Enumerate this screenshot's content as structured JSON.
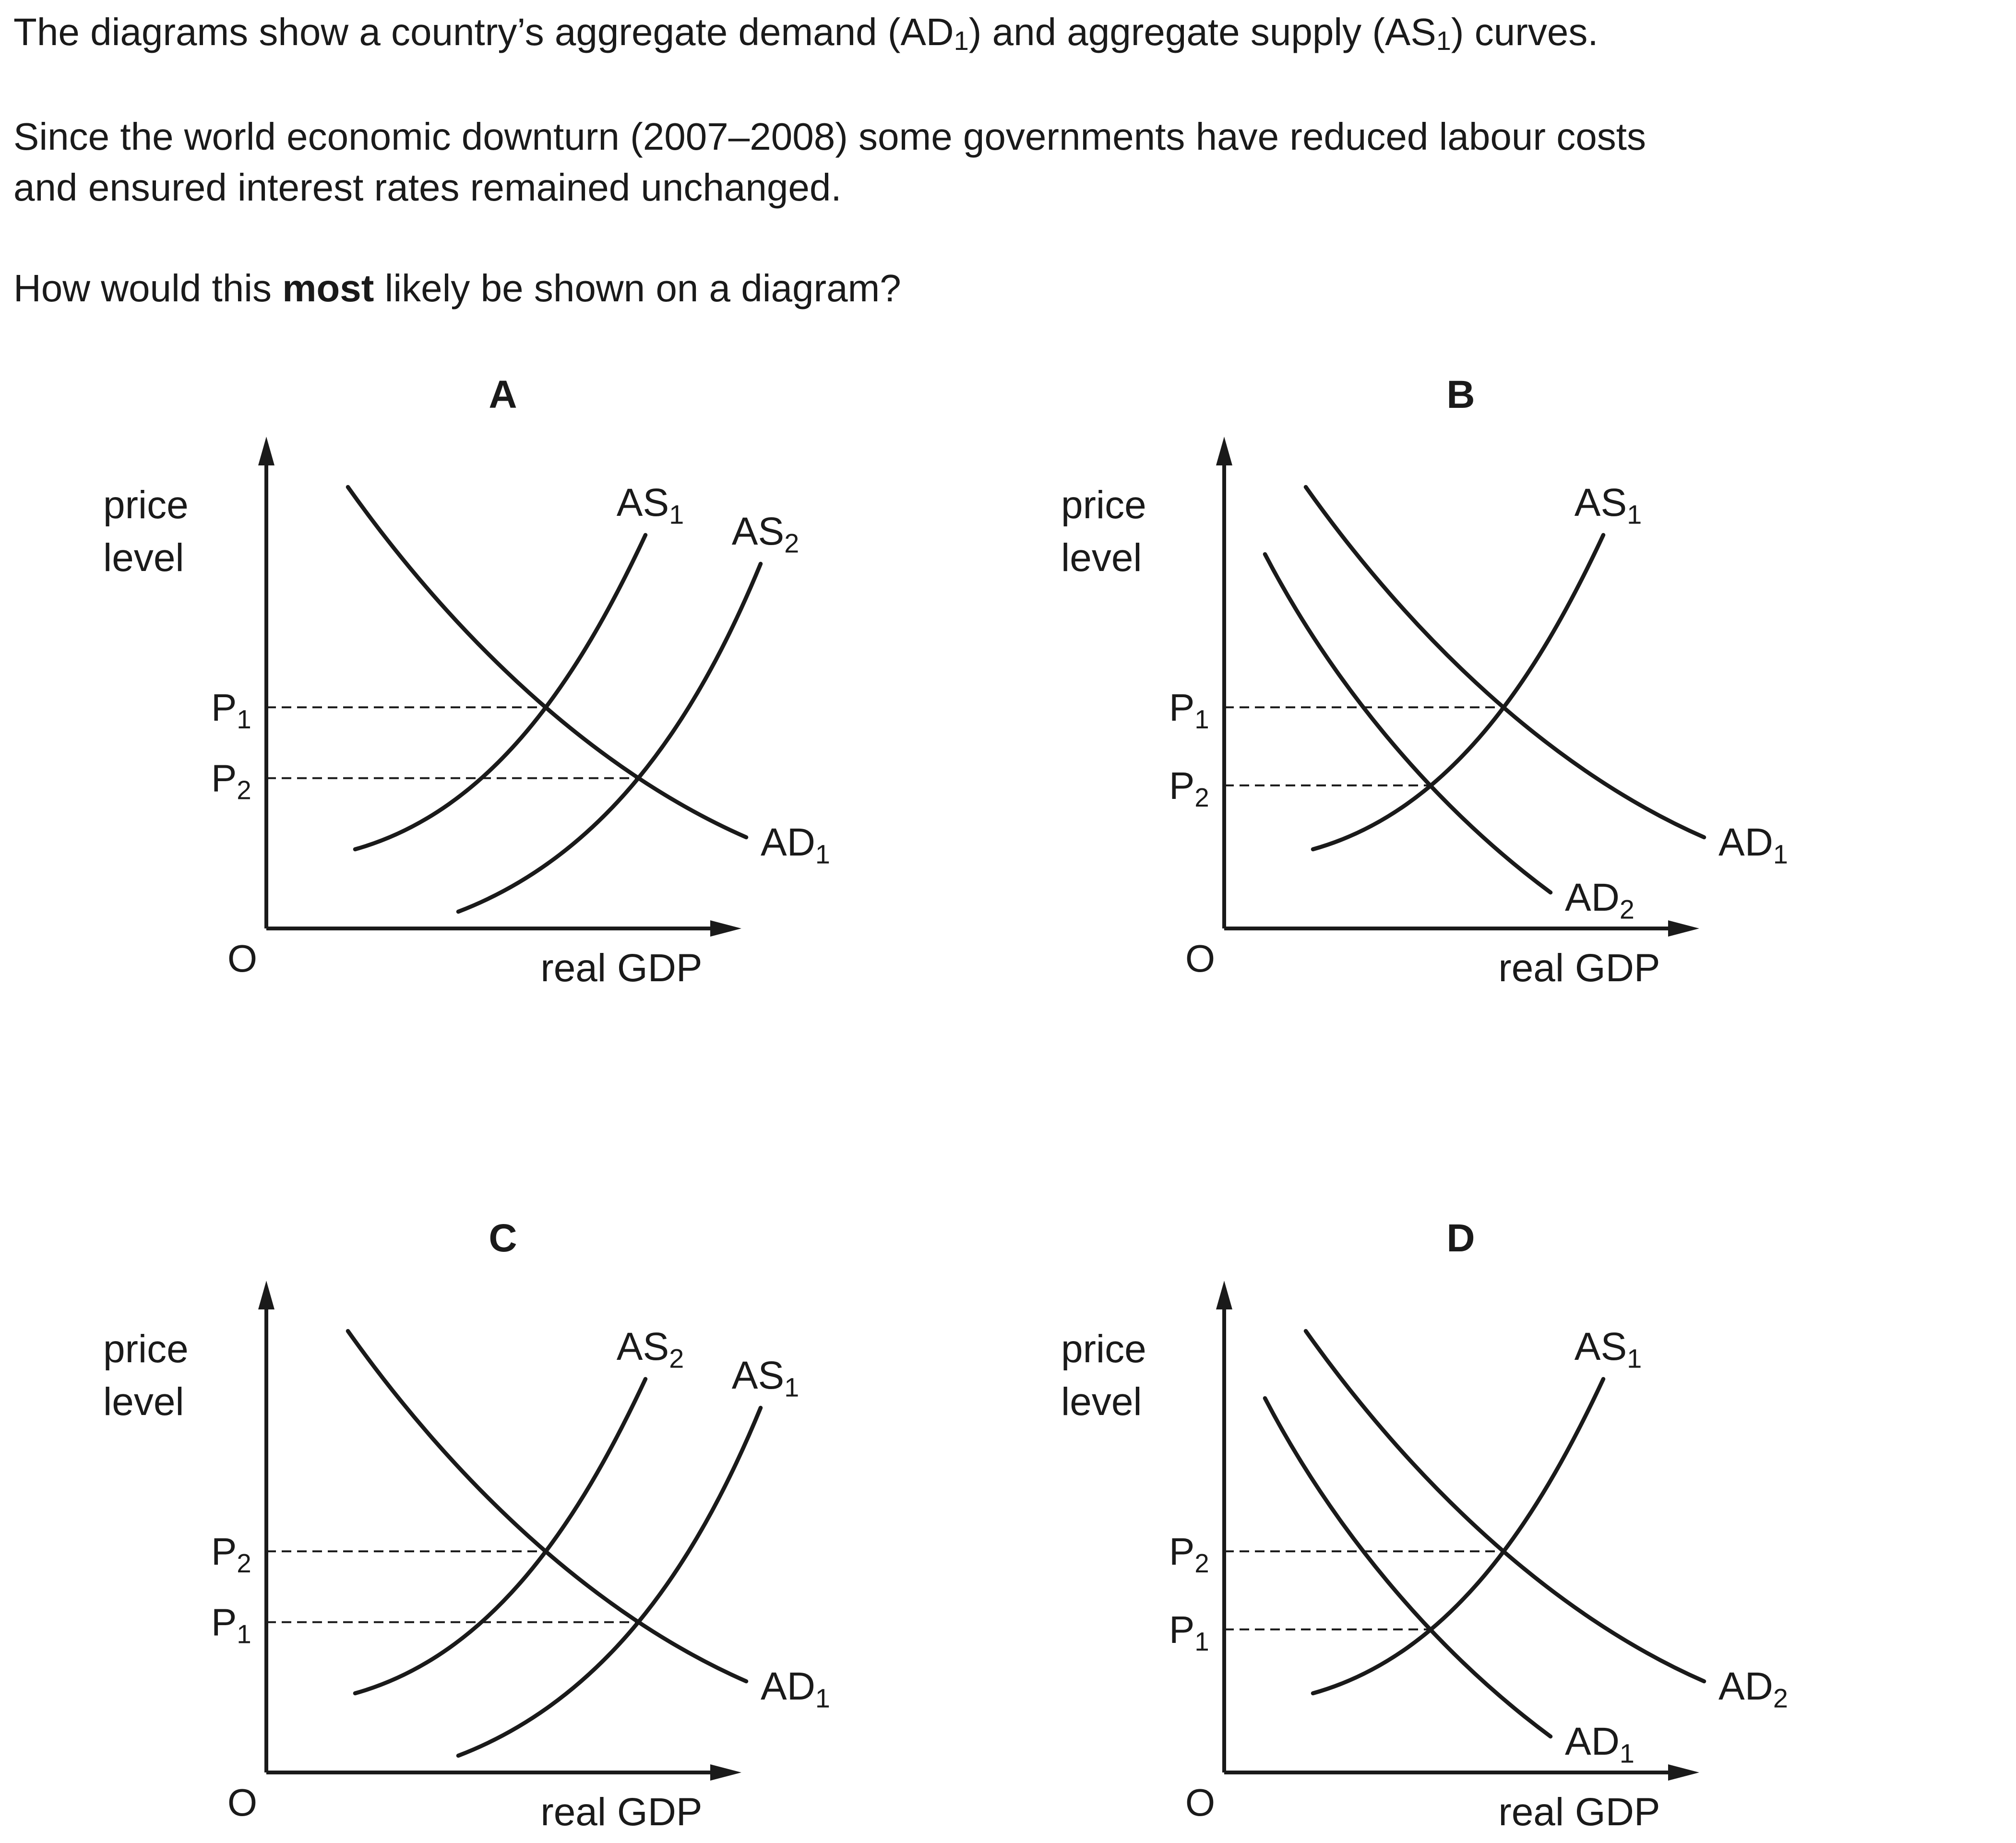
{
  "question": {
    "line1": {
      "a": "The diagrams show a country’s aggregate demand (AD",
      "s1": "1",
      "b": ") and aggregate supply (AS",
      "s2": "1",
      "c": ") curves."
    },
    "line2": "Since the world economic downturn (2007–2008) some governments have reduced labour costs",
    "line3": "and ensured interest rates remained unchanged.",
    "line4": {
      "a": "How would this ",
      "bold": "most",
      "b": " likely be shown on a diagram?"
    }
  },
  "diagrams": [
    {
      "letter": "A",
      "ylabel": [
        "price",
        "level"
      ],
      "xlabel": "real GDP",
      "origin": "O",
      "prices": [
        {
          "base": "P",
          "sub": "1"
        },
        {
          "base": "P",
          "sub": "2"
        }
      ],
      "curves": [
        {
          "kind": "demand",
          "shift": "base",
          "label": "AD",
          "sub": "1"
        },
        {
          "kind": "supply",
          "shift": "base",
          "label": "AS",
          "sub": "1"
        },
        {
          "kind": "supply",
          "shift": "right",
          "label": "AS",
          "sub": "2"
        }
      ]
    },
    {
      "letter": "B",
      "ylabel": [
        "price",
        "level"
      ],
      "xlabel": "real GDP",
      "origin": "O",
      "prices": [
        {
          "base": "P",
          "sub": "1"
        },
        {
          "base": "P",
          "sub": "2"
        }
      ],
      "curves": [
        {
          "kind": "demand",
          "shift": "base",
          "label": "AD",
          "sub": "1"
        },
        {
          "kind": "demand",
          "shift": "left",
          "label": "AD",
          "sub": "2"
        },
        {
          "kind": "supply",
          "shift": "base",
          "label": "AS",
          "sub": "1"
        }
      ]
    },
    {
      "letter": "C",
      "ylabel": [
        "price",
        "level"
      ],
      "xlabel": "real GDP",
      "origin": "O",
      "prices": [
        {
          "base": "P",
          "sub": "2"
        },
        {
          "base": "P",
          "sub": "1"
        }
      ],
      "curves": [
        {
          "kind": "demand",
          "shift": "base",
          "label": "AD",
          "sub": "1"
        },
        {
          "kind": "supply",
          "shift": "base",
          "label": "AS",
          "sub": "2"
        },
        {
          "kind": "supply",
          "shift": "right",
          "label": "AS",
          "sub": "1"
        }
      ]
    },
    {
      "letter": "D",
      "ylabel": [
        "price",
        "level"
      ],
      "xlabel": "real GDP",
      "origin": "O",
      "prices": [
        {
          "base": "P",
          "sub": "2"
        },
        {
          "base": "P",
          "sub": "1"
        }
      ],
      "curves": [
        {
          "kind": "demand",
          "shift": "base",
          "label": "AD",
          "sub": "2"
        },
        {
          "kind": "demand",
          "shift": "left",
          "label": "AD",
          "sub": "1"
        },
        {
          "kind": "supply",
          "shift": "base",
          "label": "AS",
          "sub": "1"
        }
      ]
    }
  ]
}
